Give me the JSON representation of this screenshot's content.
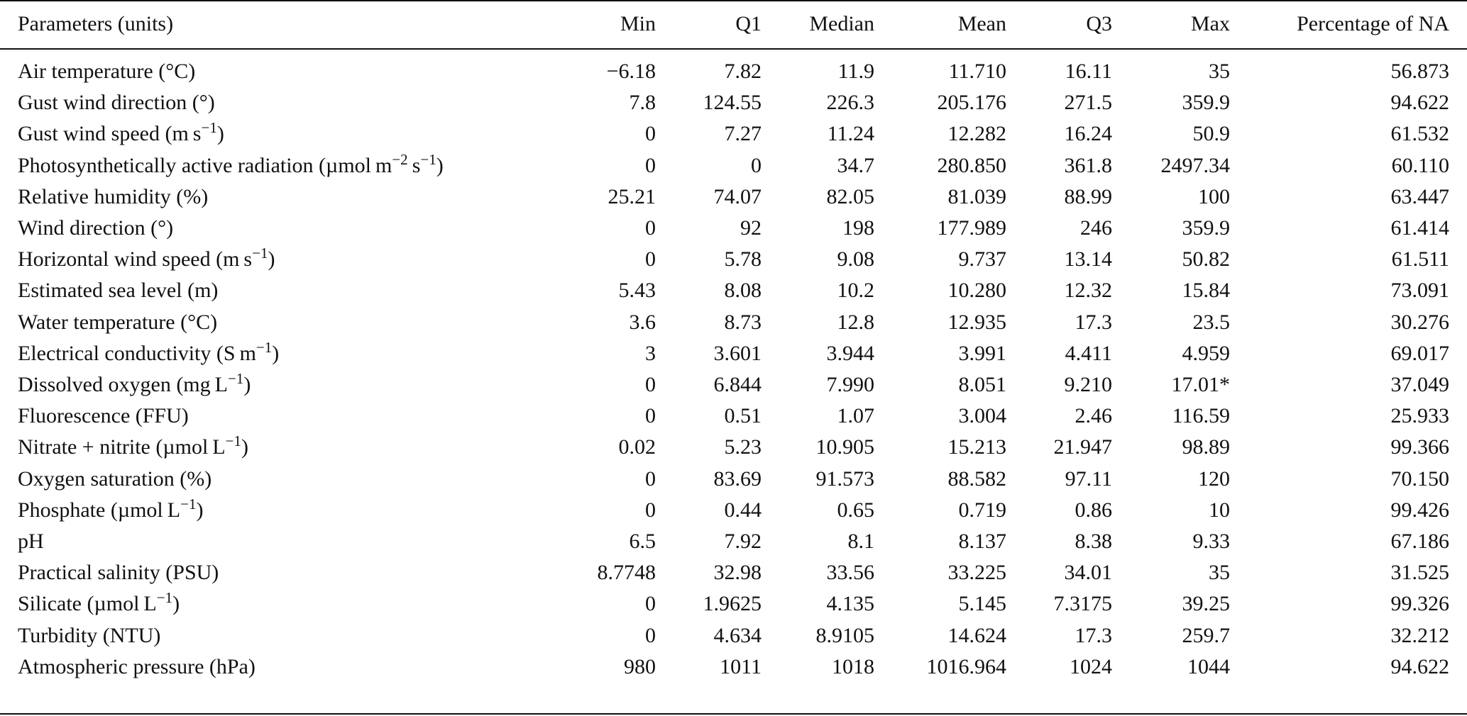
{
  "table": {
    "header": [
      "Parameters (units)",
      "Min",
      "Q1",
      "Median",
      "Mean",
      "Q3",
      "Max",
      "Percentage of NA"
    ],
    "rows": [
      [
        [
          "Air temperature (°C)"
        ],
        "−6.18",
        "7.82",
        "11.9",
        "11.710",
        "16.11",
        "35",
        "56.873"
      ],
      [
        [
          "Gust wind direction (°)"
        ],
        "7.8",
        "124.55",
        "226.3",
        "205.176",
        "271.5",
        "359.9",
        "94.622"
      ],
      [
        [
          "Gust wind speed (m s",
          "−1",
          ")"
        ],
        "0",
        "7.27",
        "11.24",
        "12.282",
        "16.24",
        "50.9",
        "61.532"
      ],
      [
        [
          "Photosynthetically active radiation (µmol m",
          "−2",
          " s",
          "−1",
          ")"
        ],
        "0",
        "0",
        "34.7",
        "280.850",
        "361.8",
        "2497.34",
        "60.110"
      ],
      [
        [
          "Relative humidity (%)"
        ],
        "25.21",
        "74.07",
        "82.05",
        "81.039",
        "88.99",
        "100",
        "63.447"
      ],
      [
        [
          "Wind direction (°)"
        ],
        "0",
        "92",
        "198",
        "177.989",
        "246",
        "359.9",
        "61.414"
      ],
      [
        [
          "Horizontal wind speed (m s",
          "−1",
          ")"
        ],
        "0",
        "5.78",
        "9.08",
        "9.737",
        "13.14",
        "50.82",
        "61.511"
      ],
      [
        [
          "Estimated sea level (m)"
        ],
        "5.43",
        "8.08",
        "10.2",
        "10.280",
        "12.32",
        "15.84",
        "73.091"
      ],
      [
        [
          "Water temperature (°C)"
        ],
        "3.6",
        "8.73",
        "12.8",
        "12.935",
        "17.3",
        "23.5",
        "30.276"
      ],
      [
        [
          "Electrical conductivity (S m",
          "−1",
          ")"
        ],
        "3",
        "3.601",
        "3.944",
        "3.991",
        "4.411",
        "4.959",
        "69.017"
      ],
      [
        [
          "Dissolved oxygen (mg L",
          "−1",
          ")"
        ],
        "0",
        "6.844",
        "7.990",
        "8.051",
        "9.210",
        "17.01*",
        "37.049"
      ],
      [
        [
          "Fluorescence (FFU)"
        ],
        "0",
        "0.51",
        "1.07",
        "3.004",
        "2.46",
        "116.59",
        "25.933"
      ],
      [
        [
          "Nitrate + nitrite (µmol L",
          "−1",
          ")"
        ],
        "0.02",
        "5.23",
        "10.905",
        "15.213",
        "21.947",
        "98.89",
        "99.366"
      ],
      [
        [
          "Oxygen saturation (%)"
        ],
        "0",
        "83.69",
        "91.573",
        "88.582",
        "97.11",
        "120",
        "70.150"
      ],
      [
        [
          "Phosphate (µmol L",
          "−1",
          ")"
        ],
        "0",
        "0.44",
        "0.65",
        "0.719",
        "0.86",
        "10",
        "99.426"
      ],
      [
        [
          "pH"
        ],
        "6.5",
        "7.92",
        "8.1",
        "8.137",
        "8.38",
        "9.33",
        "67.186"
      ],
      [
        [
          "Practical salinity (PSU)"
        ],
        "8.7748",
        "32.98",
        "33.56",
        "33.225",
        "34.01",
        "35",
        "31.525"
      ],
      [
        [
          "Silicate (µmol L",
          "−1",
          ")"
        ],
        "0",
        "1.9625",
        "4.135",
        "5.145",
        "7.3175",
        "39.25",
        "99.326"
      ],
      [
        [
          "Turbidity (NTU)"
        ],
        "0",
        "4.634",
        "8.9105",
        "14.624",
        "17.3",
        "259.7",
        "32.212"
      ],
      [
        [
          "Atmospheric pressure (hPa)"
        ],
        "980",
        "1011",
        "1018",
        "1016.964",
        "1024",
        "1044",
        "94.622"
      ]
    ]
  }
}
